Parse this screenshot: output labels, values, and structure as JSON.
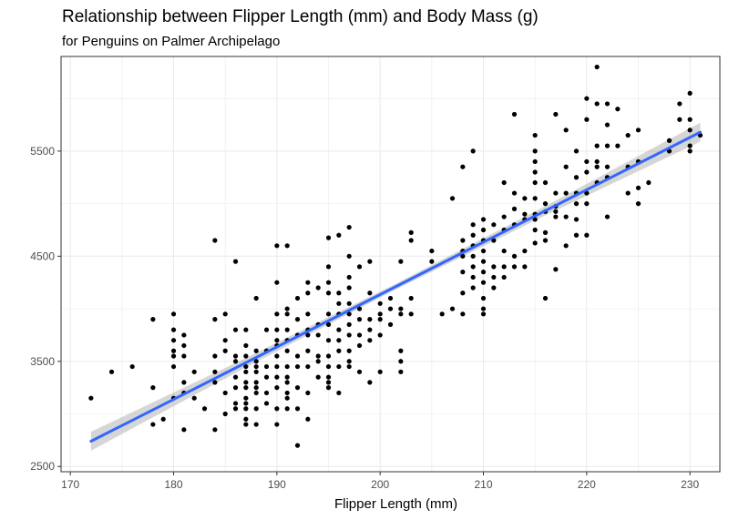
{
  "chart_data": {
    "type": "scatter",
    "title": "Relationship between Flipper Length (mm) and Body Mass (g)",
    "subtitle": "for Penguins on Palmer Archipelago",
    "xlabel": "Flipper Length (mm)",
    "ylabel": "",
    "xlim": [
      169.1,
      232.9
    ],
    "ylim": [
      2450,
      6400
    ],
    "xticks": [
      170,
      180,
      190,
      200,
      210,
      220,
      230
    ],
    "yticks": [
      2500,
      3500,
      4500,
      5500
    ],
    "grid": true,
    "colors": {
      "points": "#000000",
      "fit_line": "#3366ff",
      "ribbon": "#999999",
      "grid": "#ebebeb",
      "border": "#333333"
    },
    "fit": {
      "method": "lm",
      "x_range": [
        172,
        231
      ],
      "y_range": [
        2740,
        5680
      ],
      "se": true,
      "band_halfwidth": [
        90,
        45,
        28,
        45,
        90
      ]
    },
    "points": [
      [
        172,
        3150
      ],
      [
        174,
        3400
      ],
      [
        176,
        3450
      ],
      [
        178,
        3250
      ],
      [
        178,
        2900
      ],
      [
        178,
        3900
      ],
      [
        179,
        2950
      ],
      [
        180,
        3950
      ],
      [
        180,
        3800
      ],
      [
        180,
        3700
      ],
      [
        180,
        3600
      ],
      [
        180,
        3550
      ],
      [
        180,
        3450
      ],
      [
        180,
        3150
      ],
      [
        181,
        3750
      ],
      [
        181,
        3650
      ],
      [
        181,
        3550
      ],
      [
        181,
        3300
      ],
      [
        181,
        3200
      ],
      [
        181,
        2850
      ],
      [
        182,
        3400
      ],
      [
        182,
        3150
      ],
      [
        183,
        3050
      ],
      [
        184,
        4650
      ],
      [
        184,
        3900
      ],
      [
        184,
        3550
      ],
      [
        184,
        3400
      ],
      [
        184,
        3300
      ],
      [
        184,
        2850
      ],
      [
        185,
        3950
      ],
      [
        185,
        3700
      ],
      [
        185,
        3600
      ],
      [
        185,
        3200
      ],
      [
        185,
        3000
      ],
      [
        186,
        4450
      ],
      [
        186,
        3800
      ],
      [
        186,
        3550
      ],
      [
        186,
        3500
      ],
      [
        186,
        3350
      ],
      [
        186,
        3250
      ],
      [
        186,
        3100
      ],
      [
        186,
        3050
      ],
      [
        187,
        3800
      ],
      [
        187,
        3650
      ],
      [
        187,
        3550
      ],
      [
        187,
        3450
      ],
      [
        187,
        3400
      ],
      [
        187,
        3300
      ],
      [
        187,
        3250
      ],
      [
        187,
        3150
      ],
      [
        187,
        3100
      ],
      [
        187,
        3050
      ],
      [
        187,
        2950
      ],
      [
        187,
        2900
      ],
      [
        188,
        4100
      ],
      [
        188,
        3600
      ],
      [
        188,
        3500
      ],
      [
        188,
        3450
      ],
      [
        188,
        3400
      ],
      [
        188,
        3300
      ],
      [
        188,
        3250
      ],
      [
        188,
        3200
      ],
      [
        188,
        3050
      ],
      [
        188,
        2900
      ],
      [
        189,
        3800
      ],
      [
        189,
        3600
      ],
      [
        189,
        3450
      ],
      [
        189,
        3350
      ],
      [
        189,
        3200
      ],
      [
        189,
        3100
      ],
      [
        190,
        4600
      ],
      [
        190,
        4250
      ],
      [
        190,
        3950
      ],
      [
        190,
        3800
      ],
      [
        190,
        3700
      ],
      [
        190,
        3650
      ],
      [
        190,
        3550
      ],
      [
        190,
        3450
      ],
      [
        190,
        3350
      ],
      [
        190,
        3250
      ],
      [
        190,
        3050
      ],
      [
        190,
        2900
      ],
      [
        191,
        4600
      ],
      [
        191,
        4000
      ],
      [
        191,
        3950
      ],
      [
        191,
        3800
      ],
      [
        191,
        3700
      ],
      [
        191,
        3600
      ],
      [
        191,
        3450
      ],
      [
        191,
        3350
      ],
      [
        191,
        3300
      ],
      [
        191,
        3200
      ],
      [
        191,
        3150
      ],
      [
        191,
        3050
      ],
      [
        192,
        4100
      ],
      [
        192,
        3900
      ],
      [
        192,
        3750
      ],
      [
        192,
        3550
      ],
      [
        192,
        3450
      ],
      [
        192,
        3250
      ],
      [
        192,
        3050
      ],
      [
        192,
        2700
      ],
      [
        193,
        4250
      ],
      [
        193,
        4150
      ],
      [
        193,
        3950
      ],
      [
        193,
        3800
      ],
      [
        193,
        3750
      ],
      [
        193,
        3600
      ],
      [
        193,
        3450
      ],
      [
        193,
        3200
      ],
      [
        193,
        2950
      ],
      [
        194,
        4200
      ],
      [
        194,
        3850
      ],
      [
        194,
        3750
      ],
      [
        194,
        3550
      ],
      [
        194,
        3500
      ],
      [
        194,
        3350
      ],
      [
        195,
        4675
      ],
      [
        195,
        4400
      ],
      [
        195,
        4250
      ],
      [
        195,
        4150
      ],
      [
        195,
        3950
      ],
      [
        195,
        3850
      ],
      [
        195,
        3700
      ],
      [
        195,
        3550
      ],
      [
        195,
        3450
      ],
      [
        195,
        3350
      ],
      [
        195,
        3300
      ],
      [
        195,
        3250
      ],
      [
        196,
        4700
      ],
      [
        196,
        4150
      ],
      [
        196,
        4050
      ],
      [
        196,
        3950
      ],
      [
        196,
        3800
      ],
      [
        196,
        3700
      ],
      [
        196,
        3600
      ],
      [
        196,
        3450
      ],
      [
        196,
        3200
      ],
      [
        197,
        4775
      ],
      [
        197,
        4500
      ],
      [
        197,
        4300
      ],
      [
        197,
        4200
      ],
      [
        197,
        4050
      ],
      [
        197,
        3950
      ],
      [
        197,
        3850
      ],
      [
        197,
        3750
      ],
      [
        197,
        3600
      ],
      [
        197,
        3500
      ],
      [
        197,
        3450
      ],
      [
        198,
        4400
      ],
      [
        198,
        4000
      ],
      [
        198,
        3900
      ],
      [
        198,
        3750
      ],
      [
        198,
        3650
      ],
      [
        198,
        3400
      ],
      [
        199,
        4450
      ],
      [
        199,
        4150
      ],
      [
        199,
        3900
      ],
      [
        199,
        3800
      ],
      [
        199,
        3700
      ],
      [
        199,
        3300
      ],
      [
        200,
        4050
      ],
      [
        200,
        3950
      ],
      [
        200,
        3900
      ],
      [
        200,
        3750
      ],
      [
        200,
        3400
      ],
      [
        201,
        4100
      ],
      [
        201,
        4000
      ],
      [
        201,
        3850
      ],
      [
        202,
        4450
      ],
      [
        202,
        4000
      ],
      [
        202,
        3950
      ],
      [
        202,
        3600
      ],
      [
        202,
        3500
      ],
      [
        202,
        3400
      ],
      [
        203,
        4725
      ],
      [
        203,
        4650
      ],
      [
        203,
        4100
      ],
      [
        203,
        3950
      ],
      [
        205,
        4550
      ],
      [
        205,
        4450
      ],
      [
        206,
        3950
      ],
      [
        207,
        5050
      ],
      [
        207,
        4000
      ],
      [
        208,
        5350
      ],
      [
        208,
        4650
      ],
      [
        208,
        4550
      ],
      [
        208,
        4500
      ],
      [
        208,
        4350
      ],
      [
        208,
        4150
      ],
      [
        208,
        3950
      ],
      [
        209,
        5500
      ],
      [
        209,
        4800
      ],
      [
        209,
        4700
      ],
      [
        209,
        4600
      ],
      [
        209,
        4500
      ],
      [
        209,
        4400
      ],
      [
        209,
        4300
      ],
      [
        209,
        4200
      ],
      [
        210,
        4850
      ],
      [
        210,
        4750
      ],
      [
        210,
        4650
      ],
      [
        210,
        4550
      ],
      [
        210,
        4450
      ],
      [
        210,
        4350
      ],
      [
        210,
        4250
      ],
      [
        210,
        4100
      ],
      [
        210,
        4000
      ],
      [
        210,
        3950
      ],
      [
        211,
        4800
      ],
      [
        211,
        4650
      ],
      [
        211,
        4400
      ],
      [
        211,
        4300
      ],
      [
        211,
        4200
      ],
      [
        212,
        5200
      ],
      [
        212,
        4875
      ],
      [
        212,
        4750
      ],
      [
        212,
        4550
      ],
      [
        212,
        4400
      ],
      [
        212,
        4300
      ],
      [
        213,
        5850
      ],
      [
        213,
        5100
      ],
      [
        213,
        4950
      ],
      [
        213,
        4800
      ],
      [
        213,
        4500
      ],
      [
        213,
        4400
      ],
      [
        214,
        5050
      ],
      [
        214,
        4900
      ],
      [
        214,
        4850
      ],
      [
        214,
        4550
      ],
      [
        214,
        4400
      ],
      [
        215,
        5650
      ],
      [
        215,
        5500
      ],
      [
        215,
        5400
      ],
      [
        215,
        5300
      ],
      [
        215,
        5200
      ],
      [
        215,
        5050
      ],
      [
        215,
        4900
      ],
      [
        215,
        4850
      ],
      [
        215,
        4750
      ],
      [
        215,
        4625
      ],
      [
        216,
        5200
      ],
      [
        216,
        5000
      ],
      [
        216,
        4925
      ],
      [
        216,
        4725
      ],
      [
        216,
        4650
      ],
      [
        216,
        4100
      ],
      [
        217,
        5850
      ],
      [
        217,
        5100
      ],
      [
        217,
        4975
      ],
      [
        217,
        4925
      ],
      [
        217,
        4875
      ],
      [
        217,
        4375
      ],
      [
        218,
        5700
      ],
      [
        218,
        5350
      ],
      [
        218,
        5100
      ],
      [
        218,
        4875
      ],
      [
        218,
        4600
      ],
      [
        219,
        5500
      ],
      [
        219,
        5250
      ],
      [
        219,
        5100
      ],
      [
        219,
        5000
      ],
      [
        219,
        4850
      ],
      [
        219,
        4700
      ],
      [
        220,
        6000
      ],
      [
        220,
        5800
      ],
      [
        220,
        5400
      ],
      [
        220,
        5300
      ],
      [
        220,
        5100
      ],
      [
        220,
        5000
      ],
      [
        220,
        4700
      ],
      [
        221,
        6300
      ],
      [
        221,
        5950
      ],
      [
        221,
        5550
      ],
      [
        221,
        5400
      ],
      [
        221,
        5350
      ],
      [
        221,
        5200
      ],
      [
        222,
        5950
      ],
      [
        222,
        5750
      ],
      [
        222,
        5550
      ],
      [
        222,
        5350
      ],
      [
        222,
        5250
      ],
      [
        222,
        4875
      ],
      [
        223,
        5900
      ],
      [
        223,
        5550
      ],
      [
        224,
        5650
      ],
      [
        224,
        5350
      ],
      [
        224,
        5100
      ],
      [
        225,
        5700
      ],
      [
        225,
        5400
      ],
      [
        225,
        5150
      ],
      [
        225,
        5000
      ],
      [
        226,
        5200
      ],
      [
        228,
        5600
      ],
      [
        228,
        5500
      ],
      [
        229,
        5950
      ],
      [
        229,
        5800
      ],
      [
        230,
        6050
      ],
      [
        230,
        5800
      ],
      [
        230,
        5700
      ],
      [
        230,
        5550
      ],
      [
        230,
        5500
      ],
      [
        231,
        5650
      ]
    ]
  }
}
